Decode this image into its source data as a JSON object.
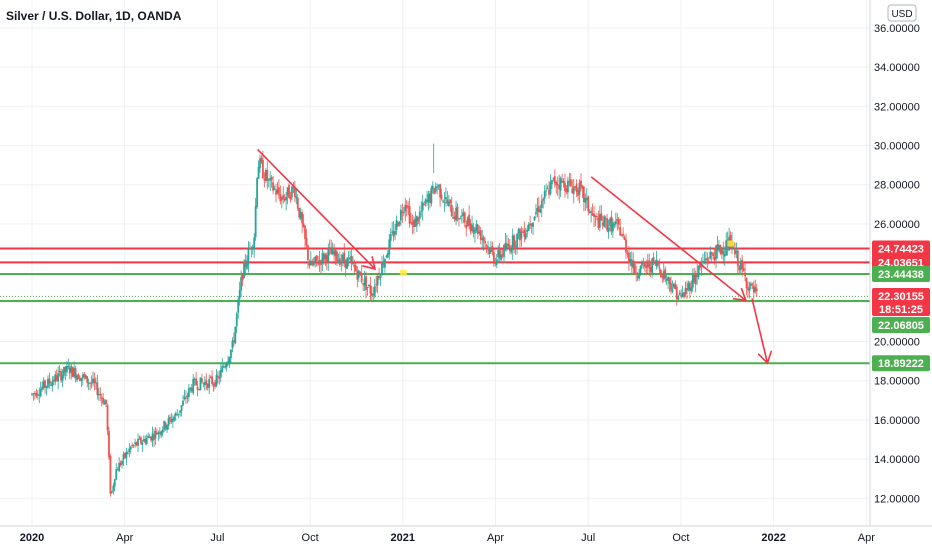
{
  "header": {
    "title": "Silver / U.S. Dollar, 1D, OANDA"
  },
  "currency": "USD",
  "colors": {
    "up": "#26a69a",
    "down": "#ef5350",
    "resistance": "#f23645",
    "support": "#4caf50",
    "arrow": "#f23645",
    "marker": "#ffeb3b"
  },
  "chart_data": {
    "type": "candlestick",
    "title": "Silver / U.S. Dollar, 1D, OANDA",
    "ylim": [
      11,
      37
    ],
    "y_ticks": [
      {
        "value": 12,
        "label": "12.00000"
      },
      {
        "value": 14,
        "label": "14.00000"
      },
      {
        "value": 16,
        "label": "16.00000"
      },
      {
        "value": 18,
        "label": "18.00000"
      },
      {
        "value": 20,
        "label": "20.00000"
      },
      {
        "value": 26,
        "label": "26.00000"
      },
      {
        "value": 28,
        "label": "28.00000"
      },
      {
        "value": 30,
        "label": "30.00000"
      },
      {
        "value": 32,
        "label": "32.00000"
      },
      {
        "value": 34,
        "label": "34.00000"
      },
      {
        "value": 36,
        "label": "36.00000"
      }
    ],
    "x_ticks": [
      {
        "month": 0,
        "label": "2020",
        "bold": true
      },
      {
        "month": 3,
        "label": "Apr",
        "bold": false
      },
      {
        "month": 6,
        "label": "Jul",
        "bold": false
      },
      {
        "month": 9,
        "label": "Oct",
        "bold": false
      },
      {
        "month": 12,
        "label": "2021",
        "bold": true
      },
      {
        "month": 15,
        "label": "Apr",
        "bold": false
      },
      {
        "month": 18,
        "label": "Jul",
        "bold": false
      },
      {
        "month": 21,
        "label": "Oct",
        "bold": false
      },
      {
        "month": 24,
        "label": "2022",
        "bold": true
      },
      {
        "month": 27,
        "label": "Apr",
        "bold": false
      }
    ],
    "price_path": [
      [
        0,
        17.3
      ],
      [
        1.2,
        18.6
      ],
      [
        2.0,
        17.8
      ],
      [
        2.4,
        16.8
      ],
      [
        2.55,
        12.0
      ],
      [
        2.7,
        13.4
      ],
      [
        3.2,
        14.6
      ],
      [
        4.0,
        15.3
      ],
      [
        4.7,
        16.3
      ],
      [
        5.2,
        17.8
      ],
      [
        6.0,
        18.0
      ],
      [
        6.5,
        19.8
      ],
      [
        6.8,
        23.4
      ],
      [
        7.2,
        25.5
      ],
      [
        7.3,
        29.2
      ],
      [
        7.7,
        28.0
      ],
      [
        8.1,
        27.3
      ],
      [
        8.5,
        27.8
      ],
      [
        9.0,
        23.8
      ],
      [
        9.6,
        24.5
      ],
      [
        10.3,
        24.0
      ],
      [
        11.0,
        22.5
      ],
      [
        11.3,
        23.8
      ],
      [
        12.1,
        27.3
      ],
      [
        12.3,
        25.8
      ],
      [
        13.1,
        28.0
      ],
      [
        13.6,
        26.6
      ],
      [
        14.4,
        25.8
      ],
      [
        15.0,
        24.2
      ],
      [
        16.0,
        25.8
      ],
      [
        16.9,
        28.2
      ],
      [
        17.7,
        27.8
      ],
      [
        18.2,
        26.2
      ],
      [
        19.0,
        25.8
      ],
      [
        19.5,
        23.6
      ],
      [
        20.2,
        24.0
      ],
      [
        21.0,
        22.2
      ],
      [
        21.8,
        24.2
      ],
      [
        22.6,
        25.0
      ],
      [
        23.2,
        22.8
      ],
      [
        23.5,
        22.3
      ]
    ],
    "levels": [
      {
        "value": 24.74423,
        "label": "24.74423",
        "kind": "resistance"
      },
      {
        "value": 24.03651,
        "label": "24.03651",
        "kind": "resistance"
      },
      {
        "value": 23.44438,
        "label": "23.44438",
        "kind": "support"
      },
      {
        "value": 22.06805,
        "label": "22.06805",
        "kind": "support"
      },
      {
        "value": 18.89222,
        "label": "18.89222",
        "kind": "support"
      }
    ],
    "last_price": {
      "value": 22.30155,
      "label": "22.30155",
      "countdown": "18:51:25"
    },
    "trendlines": [
      {
        "from": [
          7.3,
          29.8
        ],
        "to": [
          11.1,
          23.7
        ]
      },
      {
        "from": [
          18.1,
          28.4
        ],
        "to": [
          23.1,
          22.1
        ]
      },
      {
        "from": [
          23.3,
          22.2
        ],
        "to": [
          23.8,
          18.9
        ]
      }
    ]
  }
}
